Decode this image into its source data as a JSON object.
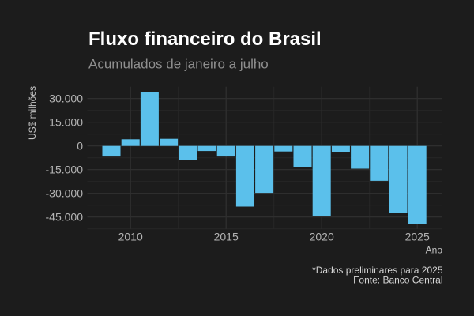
{
  "title": "Fluxo financeiro do Brasil",
  "subtitle": "Acumulados de janeiro a julho",
  "caption": {
    "line1": "*Dados preliminares para 2025",
    "line2": "Fonte: Banco Central"
  },
  "colors": {
    "background": "#1c1c1c",
    "bar": "#5bc0eb",
    "grid_major": "#303030",
    "grid_minor": "#272727",
    "title": "#ffffff",
    "subtitle": "#8f8f8f",
    "tick_label": "#b3b3b3",
    "axis_title": "#c4c4c4",
    "caption": "#d6d6d6"
  },
  "chart_data": {
    "type": "bar",
    "title": "Fluxo financeiro do Brasil",
    "subtitle": "Acumulados de janeiro a julho",
    "xlabel": "Ano",
    "ylabel": "US$ milhões",
    "x": [
      2009,
      2010,
      2011,
      2012,
      2013,
      2014,
      2015,
      2016,
      2017,
      2018,
      2019,
      2020,
      2021,
      2022,
      2023,
      2024,
      2025
    ],
    "values": [
      -6700,
      4200,
      34000,
      4500,
      -9000,
      -3200,
      -6700,
      -38400,
      -29700,
      -3500,
      -13500,
      -44400,
      -3800,
      -14400,
      -22100,
      -42600,
      -49300
    ],
    "ylim": [
      -52550,
      37450
    ],
    "xlim": [
      2008.25,
      2026.3
    ],
    "y_major_ticks": [
      30000,
      15000,
      0,
      -15000,
      -30000,
      -45000
    ],
    "y_tick_labels": [
      "30.000",
      "15.000",
      "0",
      "-15.000",
      "-30.000",
      "-45.000"
    ],
    "y_minor_ticks": [
      22500,
      7500,
      -7500,
      -22500,
      -37500,
      -52500
    ],
    "x_major_ticks": [
      2010,
      2015,
      2020,
      2025
    ],
    "x_tick_labels": [
      "2010",
      "2015",
      "2020",
      "2025"
    ],
    "x_minor_ticks": [
      2012.5,
      2017.5,
      2022.5
    ],
    "grid": true,
    "legend": false,
    "caption": "*Dados preliminares para 2025\nFonte: Banco Central"
  }
}
